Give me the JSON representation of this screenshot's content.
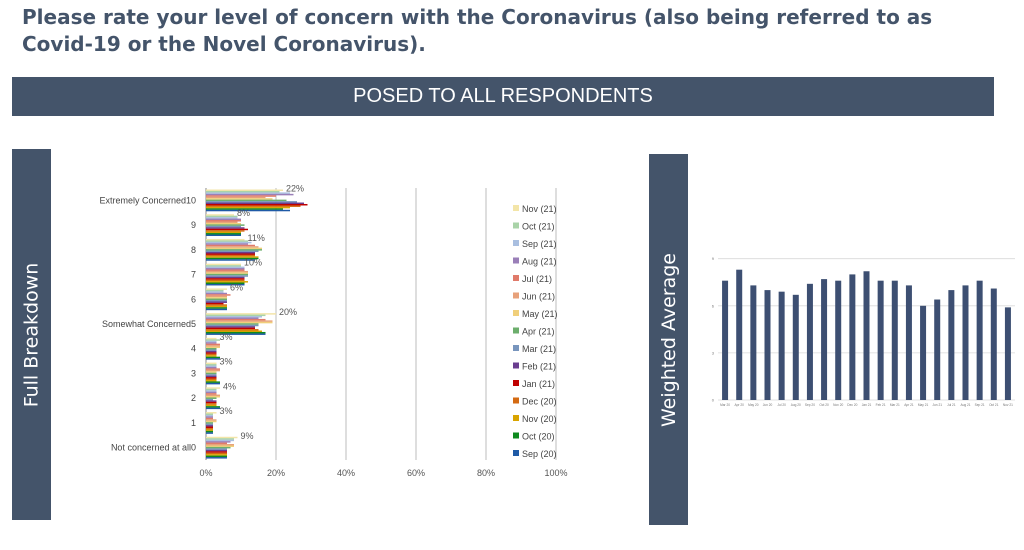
{
  "title": "Please rate your level of concern with the Coronavirus (also being referred to as Covid-19 or the Novel Coronavirus).",
  "banner": "POSED TO ALL RESPONDENTS",
  "left_panel_label": "Full Breakdown",
  "right_panel_label": "Weighted Average",
  "colors": {
    "panel": "#44546a",
    "series": [
      "#f3e5a8",
      "#a9d3a8",
      "#a9bfe0",
      "#9a7fb8",
      "#e07a6a",
      "#e7a17a",
      "#f0cf7a",
      "#6cae6c",
      "#7895bd",
      "#6a3d8f",
      "#c00000",
      "#d46a12",
      "#d9a400",
      "#0e8a1e",
      "#1f5aa6"
    ],
    "wa_bar": "#3d4f72"
  },
  "chart_data": [
    {
      "type": "bar",
      "orientation": "horizontal",
      "categories": [
        "Extremely Concerned10",
        "9",
        "8",
        "7",
        "6",
        "Somewhat Concerned5",
        "4",
        "3",
        "2",
        "1",
        "Not concerned at all0"
      ],
      "data_labels": [
        "22%",
        "8%",
        "11%",
        "10%",
        "6%",
        "20%",
        "3%",
        "3%",
        "4%",
        "3%",
        "9%"
      ],
      "xlim": [
        0,
        100
      ],
      "x_ticks": [
        "0%",
        "20%",
        "40%",
        "60%",
        "80%",
        "100%"
      ],
      "grid": true,
      "legend_position": "right",
      "series": [
        {
          "name": "Nov (21)",
          "values": [
            22,
            8,
            11,
            10,
            6,
            20,
            3,
            3,
            4,
            3,
            9
          ]
        },
        {
          "name": "Oct (21)",
          "values": [
            21,
            9,
            12,
            10,
            5,
            17,
            4,
            3,
            3,
            2,
            8
          ]
        },
        {
          "name": "Sep (21)",
          "values": [
            24,
            9,
            13,
            11,
            5,
            16,
            3,
            3,
            3,
            2,
            8
          ]
        },
        {
          "name": "Aug (21)",
          "values": [
            25,
            10,
            12,
            11,
            6,
            15,
            3,
            3,
            3,
            2,
            7
          ]
        },
        {
          "name": "Jul (21)",
          "values": [
            20,
            10,
            14,
            11,
            7,
            17,
            4,
            4,
            3,
            2,
            6
          ]
        },
        {
          "name": "Jun (21)",
          "values": [
            17,
            9,
            15,
            12,
            6,
            19,
            4,
            4,
            4,
            3,
            8
          ]
        },
        {
          "name": "May (21)",
          "values": [
            19,
            10,
            16,
            12,
            6,
            19,
            4,
            3,
            4,
            3,
            8
          ]
        },
        {
          "name": "Apr (21)",
          "values": [
            23,
            11,
            16,
            12,
            6,
            15,
            3,
            3,
            3,
            2,
            7
          ]
        },
        {
          "name": "Mar (21)",
          "values": [
            26,
            10,
            15,
            12,
            6,
            15,
            3,
            3,
            2,
            2,
            6
          ]
        },
        {
          "name": "Feb (21)",
          "values": [
            28,
            11,
            14,
            11,
            6,
            14,
            3,
            3,
            3,
            2,
            6
          ]
        },
        {
          "name": "Jan (21)",
          "values": [
            29,
            12,
            14,
            11,
            5,
            14,
            3,
            3,
            3,
            2,
            6
          ]
        },
        {
          "name": "Dec (20)",
          "values": [
            27,
            11,
            14,
            11,
            6,
            15,
            3,
            3,
            3,
            2,
            6
          ]
        },
        {
          "name": "Nov (20)",
          "values": [
            24,
            10,
            15,
            12,
            6,
            16,
            3,
            3,
            3,
            2,
            6
          ]
        },
        {
          "name": "Oct (20)",
          "values": [
            22,
            10,
            15,
            11,
            6,
            17,
            4,
            4,
            4,
            2,
            6
          ]
        },
        {
          "name": "Sep (20)",
          "values": [
            24,
            10,
            14,
            11,
            6,
            17,
            4,
            4,
            4,
            2,
            6
          ]
        }
      ]
    },
    {
      "type": "bar",
      "orientation": "vertical",
      "categories": [
        "Mar (20)",
        "Apr (20)",
        "May (20)",
        "Jun (20)",
        "Jul (20)",
        "Aug (20)",
        "Sep (20)",
        "Oct (20)",
        "Nov (20)",
        "Dec (20)",
        "Jan (21)",
        "Feb (21)",
        "Mar (21)",
        "Apr (21)",
        "May (21)",
        "Jun (21)",
        "Jul (21)",
        "Aug (21)",
        "Sep (21)",
        "Oct (21)",
        "Nov (21)"
      ],
      "x_tick_labels": [
        "Mar 20",
        "Apr 20",
        "May 20",
        "Jun 20",
        "Jul 20",
        "Aug 20",
        "Sep 20",
        "Oct 20",
        "Nov 20",
        "Dec 20",
        "Jan 21",
        "Feb 21",
        "Mar 21",
        "Apr 21",
        "May 21",
        "Jun 21",
        "Jul 21",
        "Aug 21",
        "Sep 21",
        "Oct 21",
        "Nov 21"
      ],
      "values": [
        7.6,
        8.3,
        7.3,
        7.0,
        6.9,
        6.7,
        7.4,
        7.7,
        7.6,
        8.0,
        8.2,
        7.6,
        7.6,
        7.3,
        6.0,
        6.4,
        7.0,
        7.3,
        7.6,
        7.1,
        5.9
      ],
      "ylim": [
        0,
        10
      ],
      "y_ticks": [
        "0",
        "3",
        "6",
        "9"
      ],
      "grid": true
    }
  ]
}
